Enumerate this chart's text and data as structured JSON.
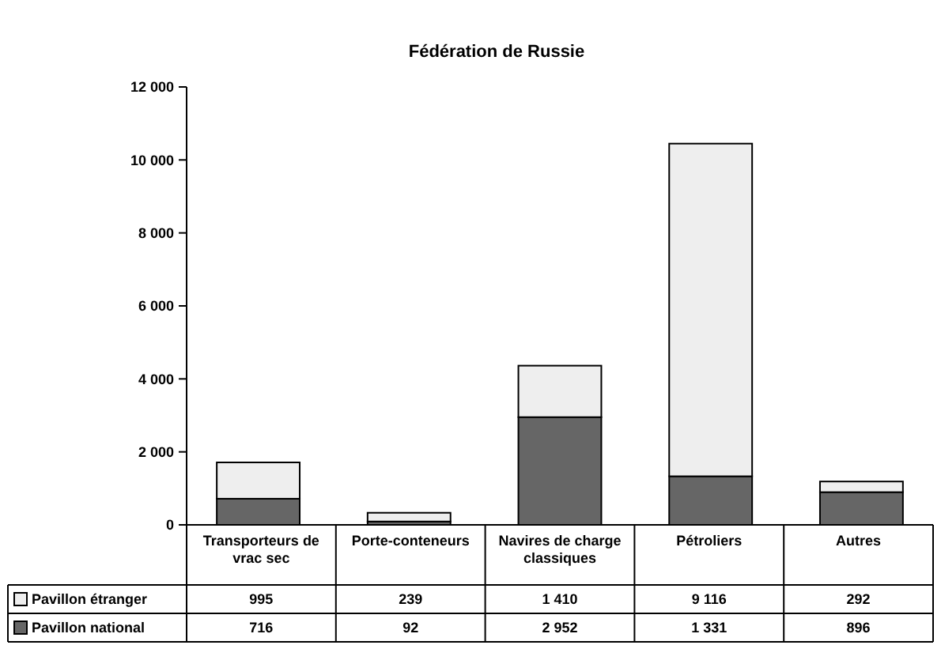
{
  "chart_data": {
    "type": "bar",
    "title": "Fédération de Russie",
    "stacked": true,
    "legend": "bottom",
    "categories": [
      "Transporteurs de vrac sec",
      "Porte-conteneurs",
      "Navires de charge classiques",
      "Pétroliers",
      "Autres"
    ],
    "series": [
      {
        "name": "Pavillon national",
        "color": "#666666",
        "values": [
          716,
          92,
          2952,
          1331,
          896
        ],
        "value_labels": [
          "716",
          "92",
          "2 952",
          "1 331",
          "896"
        ]
      },
      {
        "name": "Pavillon étranger",
        "color": "#eeeeee",
        "values": [
          995,
          239,
          1410,
          9116,
          292
        ],
        "value_labels": [
          "995",
          "239",
          "1 410",
          "9 116",
          "292"
        ]
      }
    ],
    "ylim": [
      0,
      12000
    ],
    "yticks": [
      {
        "value": 0,
        "label": "0"
      },
      {
        "value": 2000,
        "label": "2 000"
      },
      {
        "value": 4000,
        "label": "4 000"
      },
      {
        "value": 6000,
        "label": "6 000"
      },
      {
        "value": 8000,
        "label": "8 000"
      },
      {
        "value": 10000,
        "label": "10 000"
      },
      {
        "value": 12000,
        "label": "12 000"
      }
    ]
  }
}
